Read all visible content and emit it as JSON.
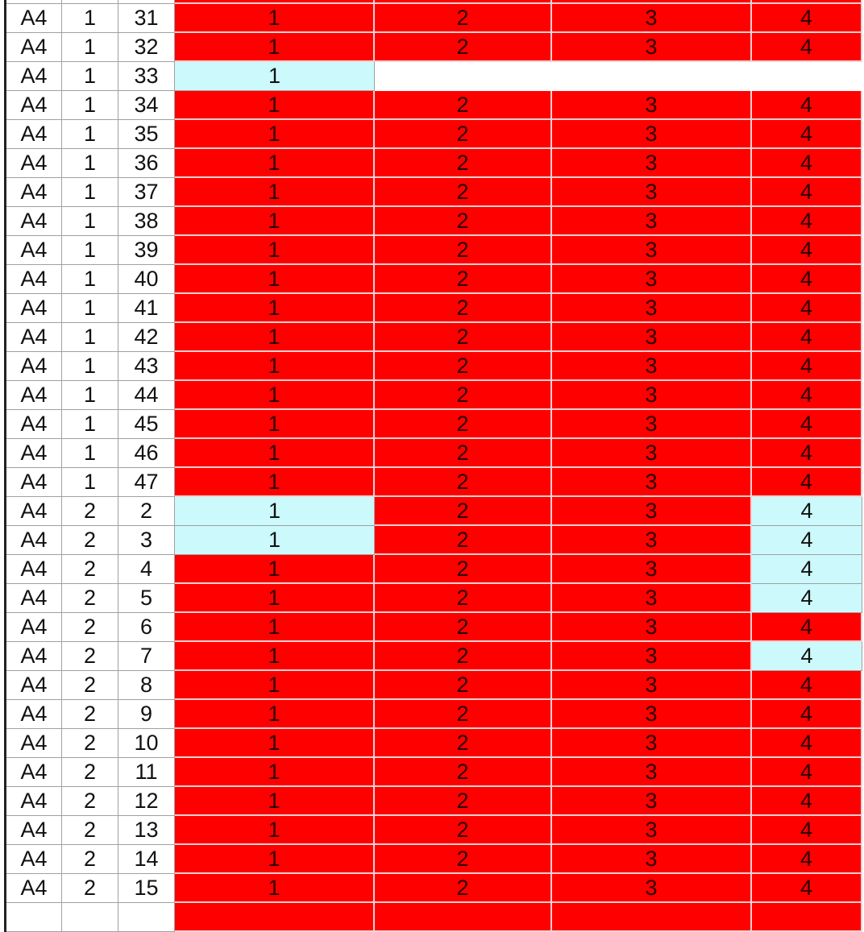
{
  "colors": {
    "red": "#ff0000",
    "cyan": "#ccf9fb",
    "empty": "#ffffff"
  },
  "rows": [
    {
      "c": [
        "",
        "",
        ""
      ],
      "v": [
        "",
        "",
        "",
        ""
      ],
      "fill": [
        "red",
        "red",
        "red",
        "red"
      ]
    },
    {
      "c": [
        "A4",
        "1",
        "31"
      ],
      "v": [
        "1",
        "2",
        "3",
        "4"
      ],
      "fill": [
        "red",
        "red",
        "red",
        "red"
      ]
    },
    {
      "c": [
        "A4",
        "1",
        "32"
      ],
      "v": [
        "1",
        "2",
        "3",
        "4"
      ],
      "fill": [
        "red",
        "red",
        "red",
        "red"
      ]
    },
    {
      "c": [
        "A4",
        "1",
        "33"
      ],
      "v": [
        "1",
        "",
        "",
        ""
      ],
      "fill": [
        "cyan",
        "empty",
        "empty",
        "empty"
      ]
    },
    {
      "c": [
        "A4",
        "1",
        "34"
      ],
      "v": [
        "1",
        "2",
        "3",
        "4"
      ],
      "fill": [
        "red",
        "red",
        "red",
        "red"
      ]
    },
    {
      "c": [
        "A4",
        "1",
        "35"
      ],
      "v": [
        "1",
        "2",
        "3",
        "4"
      ],
      "fill": [
        "red",
        "red",
        "red",
        "red"
      ]
    },
    {
      "c": [
        "A4",
        "1",
        "36"
      ],
      "v": [
        "1",
        "2",
        "3",
        "4"
      ],
      "fill": [
        "red",
        "red",
        "red",
        "red"
      ]
    },
    {
      "c": [
        "A4",
        "1",
        "37"
      ],
      "v": [
        "1",
        "2",
        "3",
        "4"
      ],
      "fill": [
        "red",
        "red",
        "red",
        "red"
      ]
    },
    {
      "c": [
        "A4",
        "1",
        "38"
      ],
      "v": [
        "1",
        "2",
        "3",
        "4"
      ],
      "fill": [
        "red",
        "red",
        "red",
        "red"
      ]
    },
    {
      "c": [
        "A4",
        "1",
        "39"
      ],
      "v": [
        "1",
        "2",
        "3",
        "4"
      ],
      "fill": [
        "red",
        "red",
        "red",
        "red"
      ]
    },
    {
      "c": [
        "A4",
        "1",
        "40"
      ],
      "v": [
        "1",
        "2",
        "3",
        "4"
      ],
      "fill": [
        "red",
        "red",
        "red",
        "red"
      ]
    },
    {
      "c": [
        "A4",
        "1",
        "41"
      ],
      "v": [
        "1",
        "2",
        "3",
        "4"
      ],
      "fill": [
        "red",
        "red",
        "red",
        "red"
      ]
    },
    {
      "c": [
        "A4",
        "1",
        "42"
      ],
      "v": [
        "1",
        "2",
        "3",
        "4"
      ],
      "fill": [
        "red",
        "red",
        "red",
        "red"
      ]
    },
    {
      "c": [
        "A4",
        "1",
        "43"
      ],
      "v": [
        "1",
        "2",
        "3",
        "4"
      ],
      "fill": [
        "red",
        "red",
        "red",
        "red"
      ]
    },
    {
      "c": [
        "A4",
        "1",
        "44"
      ],
      "v": [
        "1",
        "2",
        "3",
        "4"
      ],
      "fill": [
        "red",
        "red",
        "red",
        "red"
      ]
    },
    {
      "c": [
        "A4",
        "1",
        "45"
      ],
      "v": [
        "1",
        "2",
        "3",
        "4"
      ],
      "fill": [
        "red",
        "red",
        "red",
        "red"
      ]
    },
    {
      "c": [
        "A4",
        "1",
        "46"
      ],
      "v": [
        "1",
        "2",
        "3",
        "4"
      ],
      "fill": [
        "red",
        "red",
        "red",
        "red"
      ]
    },
    {
      "c": [
        "A4",
        "1",
        "47"
      ],
      "v": [
        "1",
        "2",
        "3",
        "4"
      ],
      "fill": [
        "red",
        "red",
        "red",
        "red"
      ]
    },
    {
      "c": [
        "A4",
        "2",
        "2"
      ],
      "v": [
        "1",
        "2",
        "3",
        "4"
      ],
      "fill": [
        "cyan",
        "red",
        "red",
        "cyan"
      ]
    },
    {
      "c": [
        "A4",
        "2",
        "3"
      ],
      "v": [
        "1",
        "2",
        "3",
        "4"
      ],
      "fill": [
        "cyan",
        "red",
        "red",
        "cyan"
      ]
    },
    {
      "c": [
        "A4",
        "2",
        "4"
      ],
      "v": [
        "1",
        "2",
        "3",
        "4"
      ],
      "fill": [
        "red",
        "red",
        "red",
        "cyan"
      ]
    },
    {
      "c": [
        "A4",
        "2",
        "5"
      ],
      "v": [
        "1",
        "2",
        "3",
        "4"
      ],
      "fill": [
        "red",
        "red",
        "red",
        "cyan"
      ]
    },
    {
      "c": [
        "A4",
        "2",
        "6"
      ],
      "v": [
        "1",
        "2",
        "3",
        "4"
      ],
      "fill": [
        "red",
        "red",
        "red",
        "red"
      ]
    },
    {
      "c": [
        "A4",
        "2",
        "7"
      ],
      "v": [
        "1",
        "2",
        "3",
        "4"
      ],
      "fill": [
        "red",
        "red",
        "red",
        "cyan"
      ]
    },
    {
      "c": [
        "A4",
        "2",
        "8"
      ],
      "v": [
        "1",
        "2",
        "3",
        "4"
      ],
      "fill": [
        "red",
        "red",
        "red",
        "red"
      ]
    },
    {
      "c": [
        "A4",
        "2",
        "9"
      ],
      "v": [
        "1",
        "2",
        "3",
        "4"
      ],
      "fill": [
        "red",
        "red",
        "red",
        "red"
      ]
    },
    {
      "c": [
        "A4",
        "2",
        "10"
      ],
      "v": [
        "1",
        "2",
        "3",
        "4"
      ],
      "fill": [
        "red",
        "red",
        "red",
        "red"
      ]
    },
    {
      "c": [
        "A4",
        "2",
        "11"
      ],
      "v": [
        "1",
        "2",
        "3",
        "4"
      ],
      "fill": [
        "red",
        "red",
        "red",
        "red"
      ]
    },
    {
      "c": [
        "A4",
        "2",
        "12"
      ],
      "v": [
        "1",
        "2",
        "3",
        "4"
      ],
      "fill": [
        "red",
        "red",
        "red",
        "red"
      ]
    },
    {
      "c": [
        "A4",
        "2",
        "13"
      ],
      "v": [
        "1",
        "2",
        "3",
        "4"
      ],
      "fill": [
        "red",
        "red",
        "red",
        "red"
      ]
    },
    {
      "c": [
        "A4",
        "2",
        "14"
      ],
      "v": [
        "1",
        "2",
        "3",
        "4"
      ],
      "fill": [
        "red",
        "red",
        "red",
        "red"
      ]
    },
    {
      "c": [
        "A4",
        "2",
        "15"
      ],
      "v": [
        "1",
        "2",
        "3",
        "4"
      ],
      "fill": [
        "red",
        "red",
        "red",
        "red"
      ]
    },
    {
      "c": [
        "",
        "",
        ""
      ],
      "v": [
        "",
        "",
        "",
        ""
      ],
      "fill": [
        "red",
        "red",
        "red",
        "red"
      ]
    }
  ]
}
